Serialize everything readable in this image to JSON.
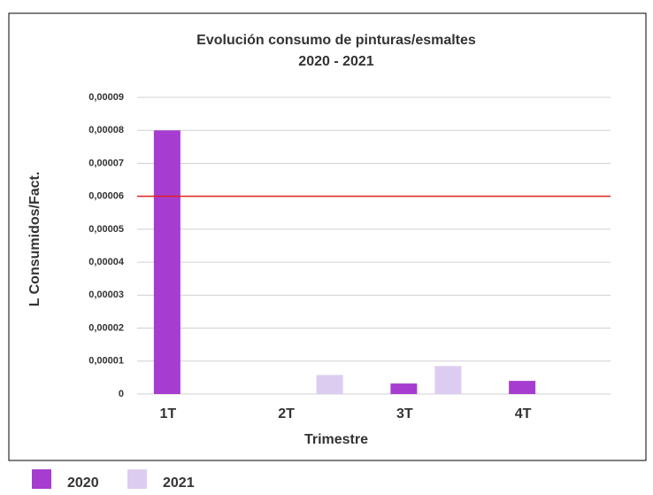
{
  "chart_data": {
    "type": "bar",
    "title": "Evolución consumo de pinturas/esmaltes",
    "subtitle": "2020 - 2021",
    "x_label": "Trimestre",
    "y_label": "L Consumidos/Fact.",
    "categories": [
      "1T",
      "2T",
      "3T",
      "4T"
    ],
    "series": [
      {
        "name": "2020",
        "color": "#a63dd0",
        "values": [
          8e-05,
          0,
          3.2e-06,
          4e-06
        ]
      },
      {
        "name": "2021",
        "color": "#dccdf0",
        "values": [
          0,
          5.8e-06,
          8.5e-06,
          0
        ]
      }
    ],
    "threshold": 6e-05,
    "threshold_color": "#e02020",
    "ylim": [
      0,
      9e-05
    ],
    "yticks": [
      0,
      {
        "value": 1e-05,
        "label": "0,00001"
      },
      {
        "value": 2e-05,
        "label": "0,00002"
      },
      {
        "value": 3e-05,
        "label": "0,00003"
      },
      {
        "value": 4e-05,
        "label": "0,00004"
      },
      {
        "value": 5e-05,
        "label": "0,00005"
      },
      {
        "value": 6e-05,
        "label": "0,00006"
      },
      {
        "value": 7e-05,
        "label": "0,00007"
      },
      {
        "value": 8e-05,
        "label": "0,00008"
      },
      {
        "value": 9e-05,
        "label": "0,00009"
      }
    ],
    "grid": true,
    "legend": "bottom-left"
  }
}
